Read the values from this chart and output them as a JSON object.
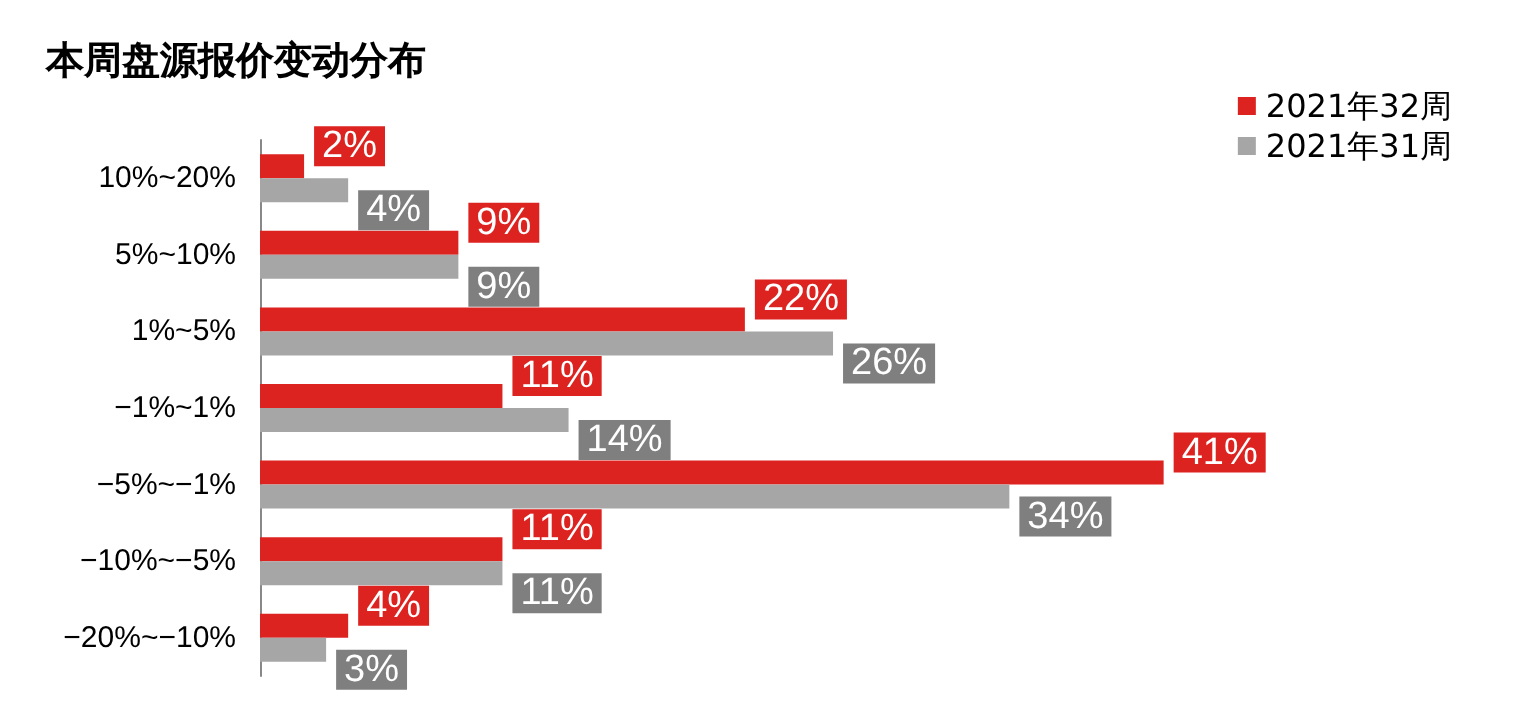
{
  "chart_data": {
    "type": "bar",
    "orientation": "horizontal",
    "title": "本周盘源报价变动分布",
    "categories": [
      "10%~20%",
      "5%~10%",
      "1%~5%",
      "−1%~1%",
      "−5%~−1%",
      "−10%~−5%",
      "−20%~−10%"
    ],
    "series": [
      {
        "name": "2021年32周",
        "color": "#dc2320",
        "values": [
          2,
          9,
          22,
          11,
          41,
          11,
          4
        ],
        "value_labels": [
          "2%",
          "9%",
          "22%",
          "11%",
          "41%",
          "11%",
          "4%"
        ]
      },
      {
        "name": "2021年31周",
        "color": "#a6a6a6",
        "values": [
          4,
          9,
          26,
          14,
          34,
          11,
          3
        ],
        "value_labels": [
          "4%",
          "9%",
          "26%",
          "14%",
          "34%",
          "11%",
          "3%"
        ]
      }
    ],
    "legend": "top right",
    "grid": false
  }
}
